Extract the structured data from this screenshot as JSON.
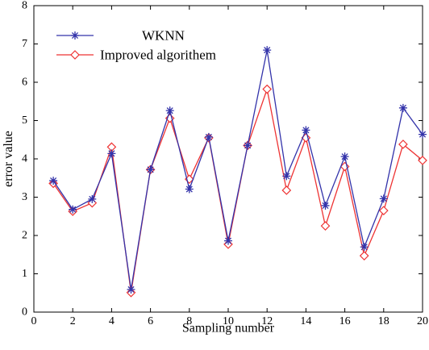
{
  "chart_data": {
    "type": "line",
    "title": "",
    "xlabel": "Sampling number",
    "ylabel": "error value",
    "xlim": [
      0,
      20
    ],
    "ylim": [
      0,
      8
    ],
    "xticks": [
      0,
      2,
      4,
      6,
      8,
      10,
      12,
      14,
      16,
      18,
      20
    ],
    "yticks": [
      0,
      1,
      2,
      3,
      4,
      5,
      6,
      7,
      8
    ],
    "grid": false,
    "legend_position": "top-left",
    "x": [
      1,
      2,
      3,
      4,
      5,
      6,
      7,
      8,
      9,
      10,
      11,
      12,
      13,
      14,
      15,
      16,
      17,
      18,
      19,
      20
    ],
    "series": [
      {
        "name": "WKNN",
        "color": "#3333aa",
        "marker": "asterisk",
        "values": [
          3.43,
          2.68,
          2.95,
          4.14,
          0.59,
          3.72,
          5.26,
          3.21,
          4.57,
          1.86,
          4.35,
          6.84,
          3.55,
          4.75,
          2.78,
          4.06,
          1.7,
          2.96,
          5.33,
          4.64
        ]
      },
      {
        "name": "Improved algorithem",
        "color": "#ee3333",
        "marker": "diamond",
        "values": [
          3.36,
          2.63,
          2.85,
          4.31,
          0.51,
          3.72,
          5.06,
          3.47,
          4.55,
          1.77,
          4.35,
          5.82,
          3.18,
          4.55,
          2.25,
          3.8,
          1.47,
          2.65,
          4.38,
          3.96
        ]
      }
    ]
  }
}
